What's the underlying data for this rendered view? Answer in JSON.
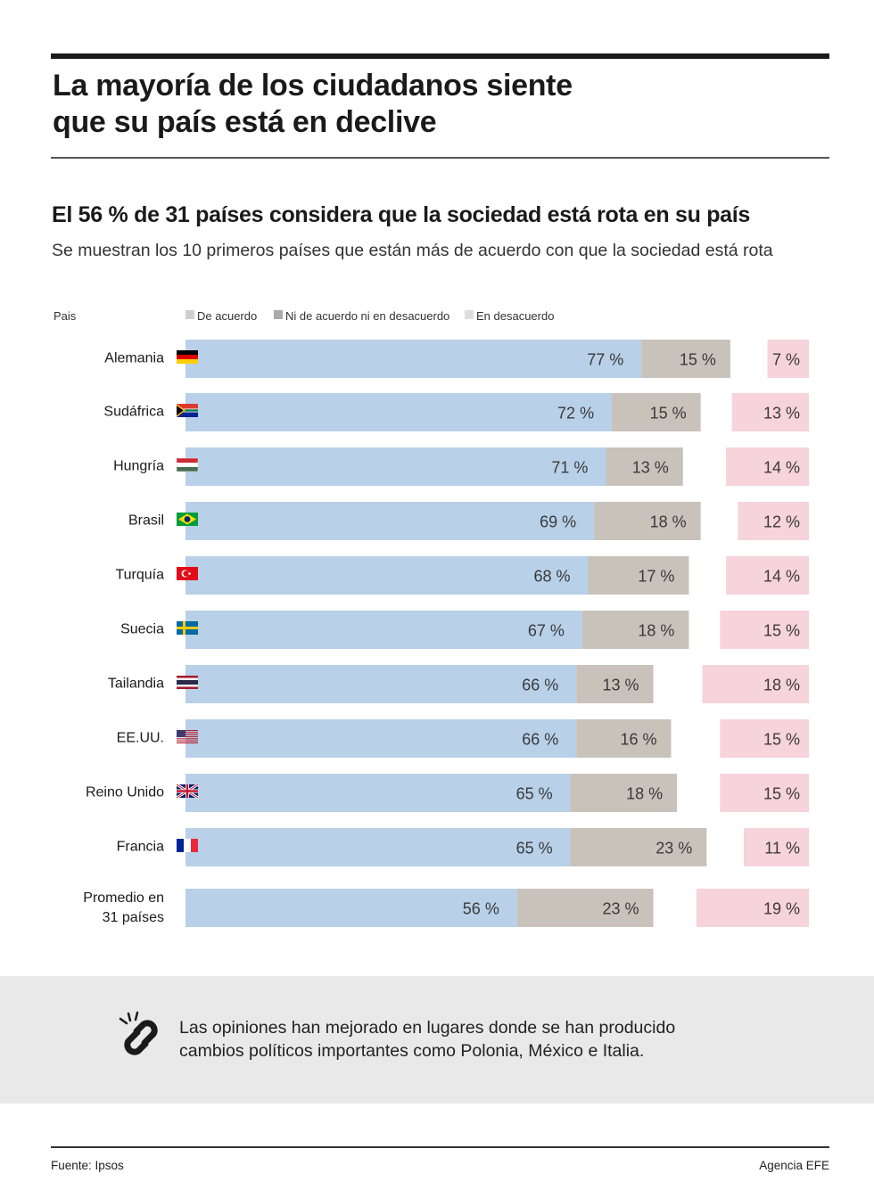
{
  "header": {
    "title_line1": "La mayoría de los ciudadanos siente",
    "title_line2": "que su país está en declive",
    "subtitle": "El 56 % de 31 países considera que la sociedad está rota en su país",
    "description": "Se muestran los 10 primeros países que están más de acuerdo con que la sociedad está rota"
  },
  "colors": {
    "agree": "#b8d0e8",
    "neutral": "#c8c2ba",
    "disagree": "#f7d3db",
    "legend_agree": "#cfcfcf",
    "legend_neutral": "#a9a9a9",
    "legend_disagree": "#dedede"
  },
  "chart_data": {
    "type": "bar",
    "orientation": "horizontal",
    "stacked": true,
    "category_axis_label": "Pais",
    "legend_placement": "top",
    "categories": [
      "Alemania",
      "Sudáfrica",
      "Hungría",
      "Brasil",
      "Turquía",
      "Suecia",
      "Tailandia",
      "EE.UU.",
      "Reino Unido",
      "Francia",
      "Promedio en 31 países"
    ],
    "flags": [
      "germany-flag-icon",
      "south-africa-flag-icon",
      "hungary-flag-icon",
      "brazil-flag-icon",
      "turkey-flag-icon",
      "sweden-flag-icon",
      "thailand-flag-icon",
      "usa-flag-icon",
      "uk-flag-icon",
      "france-flag-icon",
      ""
    ],
    "series": [
      {
        "name": "De acuerdo",
        "values": [
          77,
          72,
          71,
          69,
          68,
          67,
          66,
          66,
          65,
          65,
          56
        ]
      },
      {
        "name": "Ni de acuerdo ni en desacuerdo",
        "values": [
          15,
          15,
          13,
          18,
          17,
          18,
          13,
          16,
          18,
          23,
          23
        ]
      },
      {
        "name": "En desacuerdo",
        "values": [
          7,
          13,
          14,
          12,
          14,
          15,
          18,
          15,
          15,
          11,
          19
        ]
      }
    ],
    "unit_suffix": " %"
  },
  "note": {
    "line1": "Las opiniones han mejorado en lugares donde se han producido",
    "line2": "cambios políticos importantes como Polonia, México e Italia."
  },
  "footer": {
    "source": "Fuente: Ipsos",
    "agency": "Agencia EFE"
  }
}
